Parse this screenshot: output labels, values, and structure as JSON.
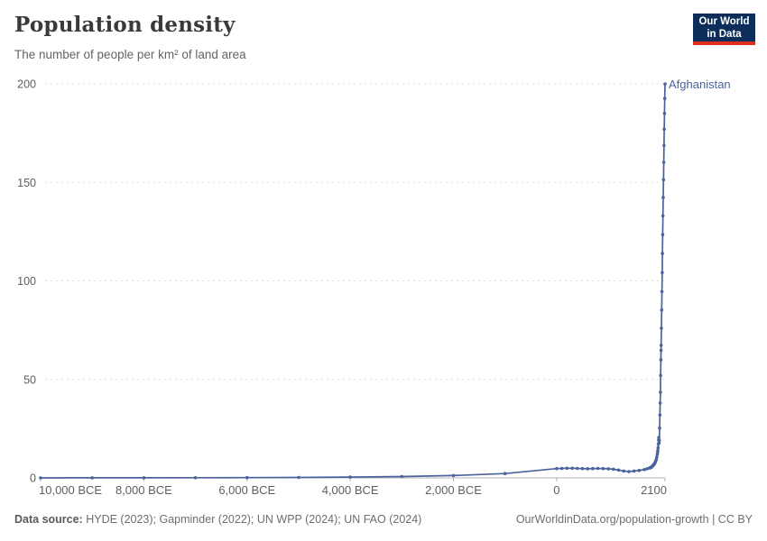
{
  "header": {
    "title": "Population density",
    "subtitle": "The number of people per km² of land area"
  },
  "logo": {
    "line1": "Our World",
    "line2": "in Data",
    "background": "#0d2e5a",
    "accent": "#dc2f1f"
  },
  "chart_data": {
    "type": "line",
    "title": "Population density",
    "ylabel": "",
    "xlabel": "",
    "xlim": [
      -10000,
      2100
    ],
    "ylim": [
      0,
      200
    ],
    "grid": "horizontal-dashed",
    "legend_position": "end-of-line-label",
    "x_ticks": [
      {
        "value": -10000,
        "label": "10,000 BCE"
      },
      {
        "value": -8000,
        "label": "8,000 BCE"
      },
      {
        "value": -6000,
        "label": "6,000 BCE"
      },
      {
        "value": -4000,
        "label": "4,000 BCE"
      },
      {
        "value": -2000,
        "label": "2,000 BCE"
      },
      {
        "value": 0,
        "label": "0"
      },
      {
        "value": 2100,
        "label": "2100"
      }
    ],
    "y_ticks": [
      {
        "value": 0,
        "label": "0"
      },
      {
        "value": 50,
        "label": "50"
      },
      {
        "value": 100,
        "label": "100"
      },
      {
        "value": 150,
        "label": "150"
      },
      {
        "value": 200,
        "label": "200"
      }
    ],
    "series": [
      {
        "name": "Afghanistan",
        "color": "#4b629c",
        "points": [
          [
            -10000,
            0.02
          ],
          [
            -9000,
            0.03
          ],
          [
            -8000,
            0.05
          ],
          [
            -7000,
            0.08
          ],
          [
            -6000,
            0.13
          ],
          [
            -5000,
            0.22
          ],
          [
            -4000,
            0.4
          ],
          [
            -3000,
            0.7
          ],
          [
            -2000,
            1.2
          ],
          [
            -1000,
            2.2
          ],
          [
            0,
            4.7
          ],
          [
            100,
            4.8
          ],
          [
            200,
            4.9
          ],
          [
            300,
            4.9
          ],
          [
            400,
            4.8
          ],
          [
            500,
            4.7
          ],
          [
            600,
            4.6
          ],
          [
            700,
            4.7
          ],
          [
            800,
            4.8
          ],
          [
            900,
            4.7
          ],
          [
            1000,
            4.6
          ],
          [
            1100,
            4.4
          ],
          [
            1200,
            4.0
          ],
          [
            1300,
            3.5
          ],
          [
            1400,
            3.2
          ],
          [
            1500,
            3.5
          ],
          [
            1600,
            3.8
          ],
          [
            1700,
            4.2
          ],
          [
            1750,
            4.6
          ],
          [
            1800,
            5.0
          ],
          [
            1810,
            5.1
          ],
          [
            1820,
            5.2
          ],
          [
            1830,
            5.4
          ],
          [
            1840,
            5.6
          ],
          [
            1850,
            5.8
          ],
          [
            1860,
            6.1
          ],
          [
            1870,
            6.4
          ],
          [
            1880,
            6.7
          ],
          [
            1890,
            7.0
          ],
          [
            1900,
            7.4
          ],
          [
            1910,
            7.9
          ],
          [
            1920,
            8.5
          ],
          [
            1930,
            9.4
          ],
          [
            1940,
            10.5
          ],
          [
            1950,
            11.9
          ],
          [
            1955,
            12.8
          ],
          [
            1960,
            13.9
          ],
          [
            1965,
            15.4
          ],
          [
            1970,
            17.2
          ],
          [
            1975,
            19.2
          ],
          [
            1980,
            20.5
          ],
          [
            1985,
            17.8
          ],
          [
            1990,
            19.1
          ],
          [
            1995,
            25.3
          ],
          [
            2000,
            31.9
          ],
          [
            2005,
            38.0
          ],
          [
            2010,
            43.5
          ],
          [
            2015,
            52.0
          ],
          [
            2020,
            59.9
          ],
          [
            2023,
            64.7
          ],
          [
            2025,
            67.3
          ],
          [
            2030,
            76.0
          ],
          [
            2035,
            85.2
          ],
          [
            2040,
            94.6
          ],
          [
            2045,
            104.2
          ],
          [
            2050,
            113.9
          ],
          [
            2055,
            123.5
          ],
          [
            2060,
            133.0
          ],
          [
            2065,
            142.3
          ],
          [
            2070,
            151.4
          ],
          [
            2075,
            160.2
          ],
          [
            2080,
            168.7
          ],
          [
            2085,
            177.0
          ],
          [
            2090,
            185.0
          ],
          [
            2095,
            192.6
          ],
          [
            2100,
            199.9
          ]
        ]
      }
    ]
  },
  "footer": {
    "source_label": "Data source:",
    "source_text": " HYDE (2023); Gapminder (2022); UN WPP (2024); UN FAO (2024)",
    "credit": "OurWorldinData.org/population-growth | CC BY"
  }
}
